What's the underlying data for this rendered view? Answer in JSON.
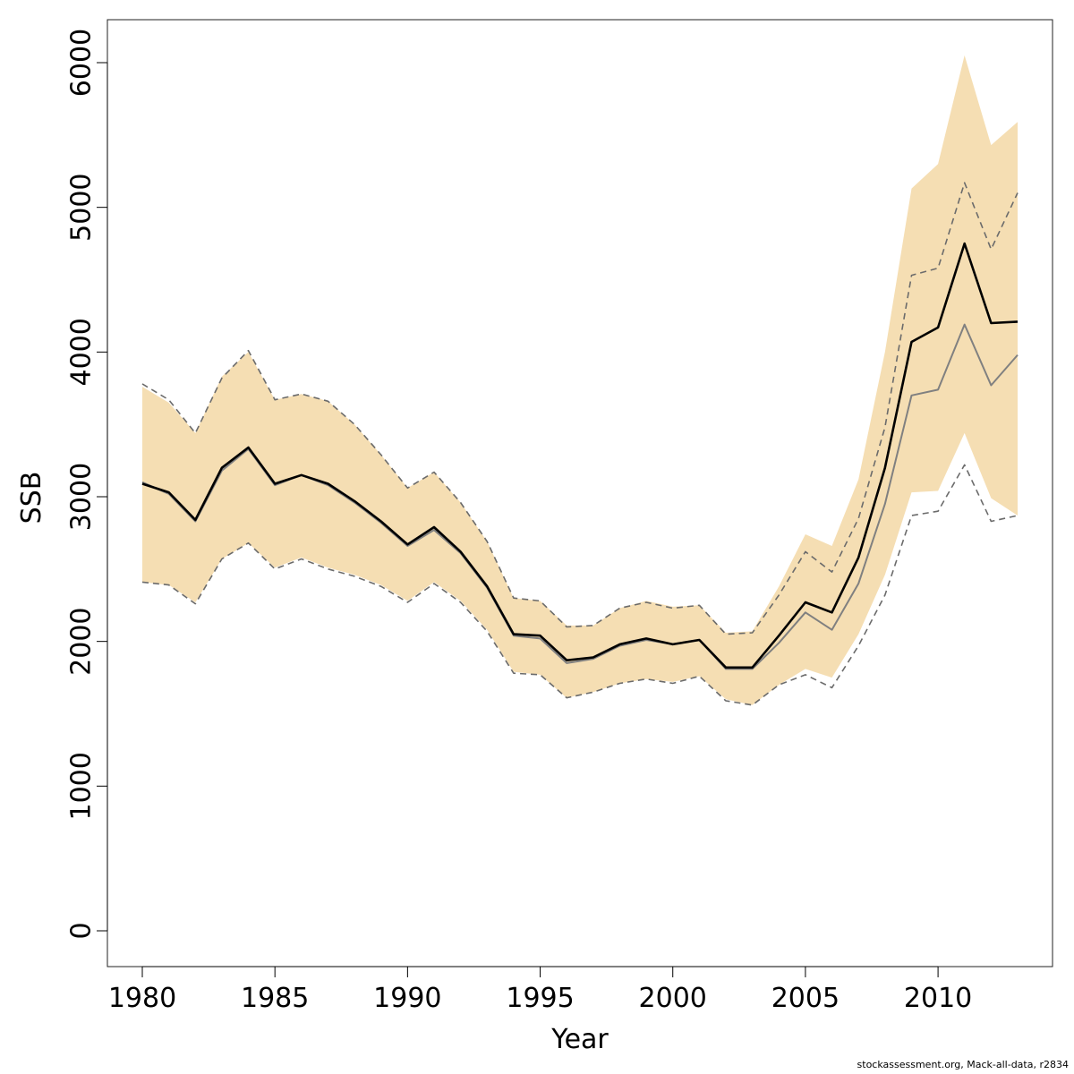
{
  "chart_data": {
    "type": "line",
    "xlabel": "Year",
    "ylabel": "SSB",
    "xlim": [
      1979.3,
      1914.3
    ],
    "ylim": [
      -250,
      6300
    ],
    "x_ticks": [
      1980,
      1985,
      1990,
      1995,
      2000,
      2005,
      2010
    ],
    "y_ticks": [
      0,
      1000,
      2000,
      3000,
      4000,
      5000,
      6000
    ],
    "x": [
      1980,
      1981,
      1982,
      1983,
      1984,
      1985,
      1986,
      1987,
      1988,
      1989,
      1990,
      1991,
      1992,
      1993,
      1994,
      1995,
      1996,
      1997,
      1998,
      1999,
      2000,
      2001,
      2002,
      2003,
      2004,
      2005,
      2006,
      2007,
      2008,
      2009,
      2010,
      2011,
      2012,
      2013
    ],
    "series": [
      {
        "role": "band",
        "lower": [
          2410,
          2390,
          2270,
          2570,
          2680,
          2510,
          2580,
          2510,
          2460,
          2390,
          2280,
          2410,
          2280,
          2080,
          1790,
          1770,
          1610,
          1650,
          1710,
          1740,
          1720,
          1760,
          1600,
          1560,
          1700,
          1810,
          1750,
          2050,
          2460,
          3030,
          3040,
          3440,
          2990,
          2870
        ],
        "upper": [
          3760,
          3650,
          3440,
          3830,
          4000,
          3670,
          3710,
          3660,
          3500,
          3290,
          3060,
          3170,
          2960,
          2690,
          2300,
          2280,
          2110,
          2110,
          2230,
          2280,
          2240,
          2250,
          2060,
          2070,
          2380,
          2740,
          2660,
          3120,
          4000,
          5130,
          5300,
          6050,
          5430,
          5590
        ]
      },
      {
        "role": "primary",
        "values": [
          3090,
          3030,
          2840,
          3200,
          3340,
          3090,
          3150,
          3090,
          2970,
          2830,
          2670,
          2790,
          2620,
          2380,
          2050,
          2040,
          1870,
          1890,
          1980,
          2020,
          1980,
          2010,
          1820,
          1820,
          2040,
          2270,
          2200,
          2580,
          3200,
          4070,
          4170,
          4750,
          4200,
          4210
        ]
      },
      {
        "role": "secondary",
        "values": [
          3100,
          3020,
          2830,
          3180,
          3330,
          3080,
          3150,
          3080,
          2960,
          2820,
          2660,
          2770,
          2610,
          2370,
          2040,
          2020,
          1850,
          1880,
          1970,
          2010,
          1980,
          2010,
          1810,
          1810,
          1990,
          2200,
          2080,
          2400,
          2950,
          3700,
          3740,
          4190,
          3770,
          3980
        ]
      },
      {
        "role": "secondary-upper",
        "values": [
          3780,
          3670,
          3440,
          3820,
          4010,
          3670,
          3710,
          3660,
          3500,
          3290,
          3060,
          3170,
          2960,
          2690,
          2300,
          2280,
          2100,
          2110,
          2230,
          2270,
          2230,
          2250,
          2050,
          2060,
          2320,
          2620,
          2480,
          2850,
          3480,
          4530,
          4580,
          5170,
          4710,
          5100
        ]
      },
      {
        "role": "secondary-lower",
        "values": [
          2410,
          2390,
          2260,
          2570,
          2680,
          2500,
          2570,
          2500,
          2450,
          2380,
          2270,
          2400,
          2270,
          2070,
          1780,
          1770,
          1610,
          1650,
          1710,
          1740,
          1710,
          1760,
          1590,
          1560,
          1700,
          1770,
          1680,
          1970,
          2320,
          2870,
          2900,
          3220,
          2830,
          2870
        ]
      }
    ],
    "grid": false,
    "legend": "none",
    "colors": {
      "band": "#f5deb3",
      "primary": "#000000",
      "secondary": "#808080",
      "dashed": "#6b6b6b",
      "frame": "#222222"
    }
  },
  "footer": {
    "credit": "stockassessment.org, Mack-all-data, r2834"
  }
}
